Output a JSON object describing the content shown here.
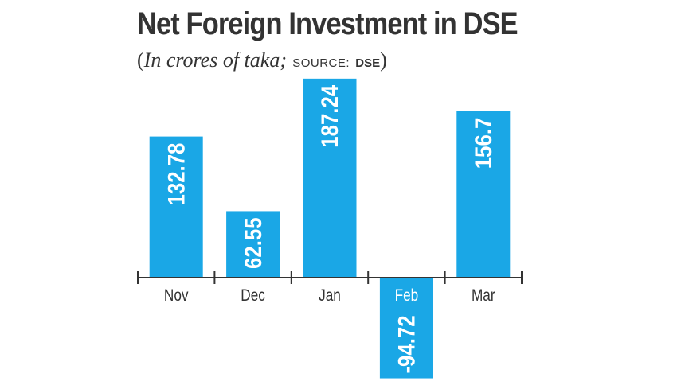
{
  "header": {
    "title": "Net Foreign Investment in DSE",
    "subtitle_open": "(",
    "subtitle_unit": "In crores of taka;",
    "subtitle_source_label": "SOURCE:",
    "subtitle_source_name": "DSE",
    "subtitle_close": ")"
  },
  "chart_data": {
    "type": "bar",
    "title": "Net Foreign Investment in DSE",
    "subtitle": "(In crores of taka; SOURCE: DSE )",
    "categories": [
      "Nov",
      "Dec",
      "Jan",
      "Feb",
      "Mar"
    ],
    "values": [
      132.78,
      62.55,
      187.24,
      -94.72,
      156.7
    ],
    "value_labels": [
      "132.78",
      "62.55",
      "187.24",
      "-94.72",
      "156.7"
    ],
    "xlabel": "",
    "ylabel": "",
    "grid": false,
    "legend": "none",
    "bar_color": "#1aa7e6",
    "label_color_inside_bar": "#ffffff",
    "axis_color": "#333333"
  }
}
